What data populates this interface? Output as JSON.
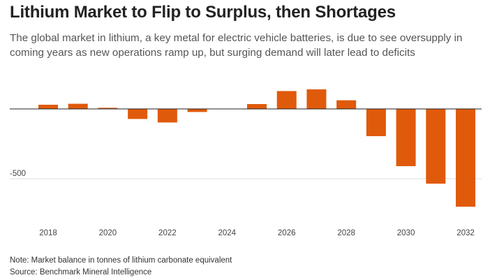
{
  "header": {
    "title": "Lithium Market to Flip to Surplus, then Shortages",
    "subtitle": "The global market in lithium, a key metal for electric vehicle batteries, is due to see oversupply in coming years as new operations ramp up, but surging demand will later lead to deficits"
  },
  "footer": {
    "note": "Note: Market balance in tonnes of lithium carbonate equivalent",
    "source": "Source: Benchmark Mineral Intelligence"
  },
  "colors": {
    "bar": "#e05a0c",
    "zero_line": "#222222",
    "grid": "#dddddd"
  },
  "chart_data": {
    "type": "bar",
    "title": "Lithium Market to Flip to Surplus, then Shortages",
    "xlabel": "",
    "ylabel": "",
    "categories": [
      "2018",
      "2019",
      "2020",
      "2021",
      "2022",
      "2023",
      "2024",
      "2025",
      "2026",
      "2027",
      "2028",
      "2029",
      "2030",
      "2031",
      "2032"
    ],
    "values": [
      30,
      37,
      8,
      -72,
      -97,
      -22,
      0,
      35,
      128,
      140,
      62,
      -195,
      -410,
      -535,
      -700
    ],
    "ylim": [
      -720,
      160
    ],
    "y_ticks": [
      {
        "value": -500,
        "label": "-500"
      }
    ],
    "x_ticks": [
      {
        "category": "2018",
        "label": "2018"
      },
      {
        "category": "2020",
        "label": "2020"
      },
      {
        "category": "2022",
        "label": "2022"
      },
      {
        "category": "2024",
        "label": "2024"
      },
      {
        "category": "2026",
        "label": "2026"
      },
      {
        "category": "2028",
        "label": "2028"
      },
      {
        "category": "2030",
        "label": "2030"
      },
      {
        "category": "2032",
        "label": "2032"
      }
    ],
    "grid": true
  }
}
